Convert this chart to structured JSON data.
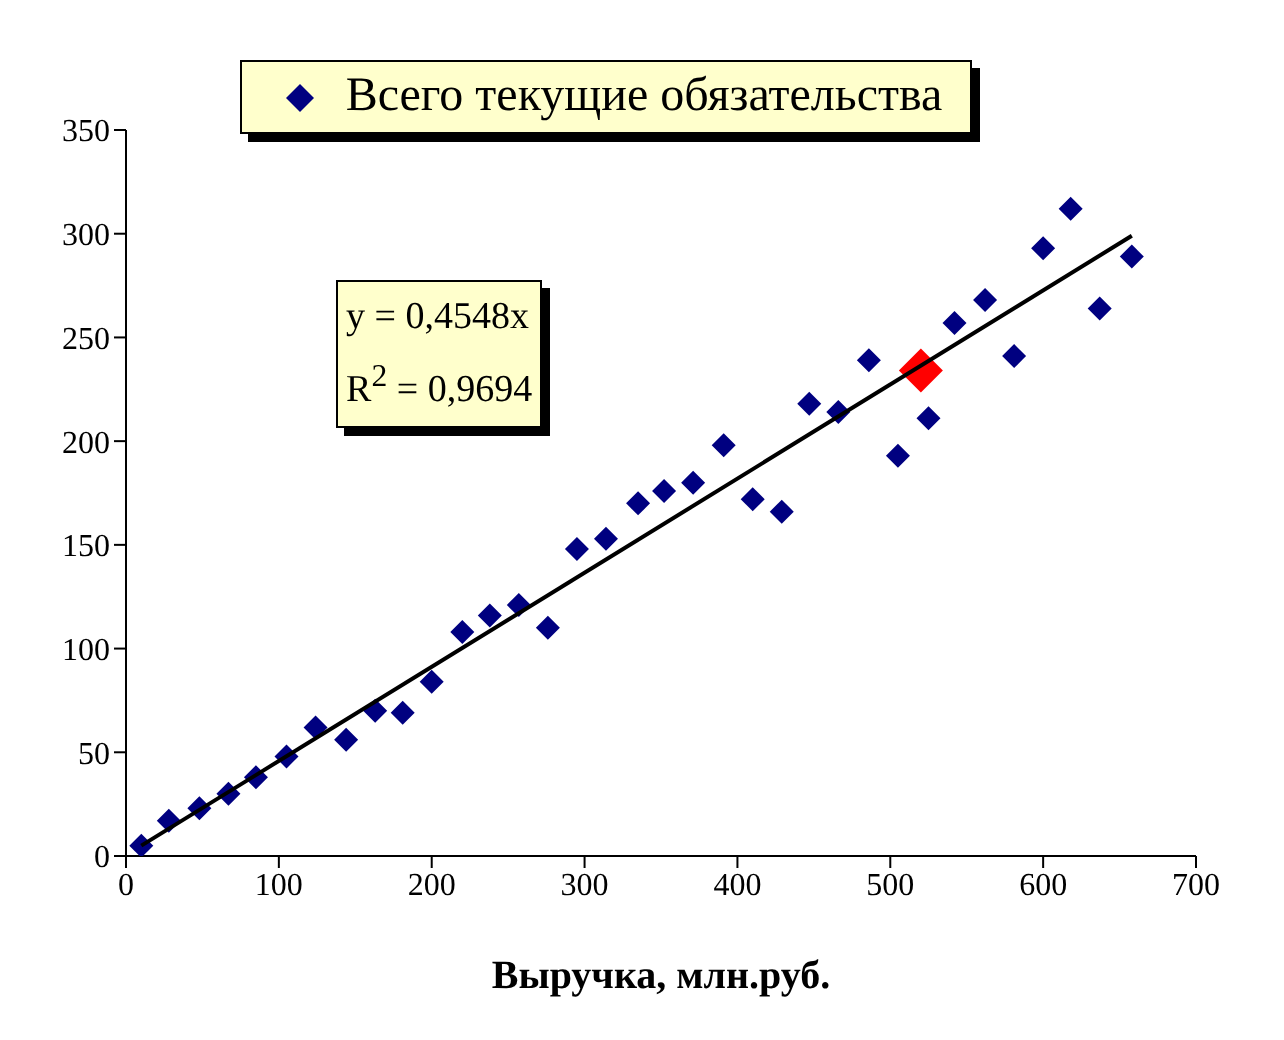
{
  "chart_data": {
    "type": "scatter",
    "xlabel": "Выручка, млн.руб.",
    "xlim": [
      0,
      700
    ],
    "xticks": [
      0,
      100,
      200,
      300,
      400,
      500,
      600,
      700
    ],
    "ylim": [
      0,
      350
    ],
    "yticks": [
      0,
      50,
      100,
      150,
      200,
      250,
      300,
      350
    ],
    "grid": false,
    "legend": "top",
    "marker": "diamond",
    "series": [
      {
        "name": "Всего текущие обязательства",
        "color": "#000080",
        "x": [
          10,
          28,
          48,
          67,
          85,
          105,
          124,
          144,
          163,
          181,
          200,
          220,
          238,
          257,
          276,
          295,
          314,
          335,
          352,
          371,
          391,
          410,
          429,
          447,
          466,
          486,
          505,
          525,
          542,
          562,
          581,
          600,
          618,
          637,
          658
        ],
        "values": [
          5,
          17,
          23,
          30,
          38,
          48,
          62,
          56,
          70,
          69,
          84,
          108,
          116,
          121,
          110,
          148,
          153,
          170,
          176,
          180,
          198,
          172,
          166,
          218,
          214,
          239,
          193,
          211,
          257,
          268,
          241,
          293,
          312,
          264,
          289
        ]
      },
      {
        "type": "scatter",
        "color": "#ff0000",
        "x": [
          520
        ],
        "values": [
          234
        ]
      },
      {
        "type": "line",
        "marker": "none",
        "color": "#000000",
        "x": [
          10,
          658
        ],
        "values": [
          5,
          299
        ]
      }
    ],
    "annotations": [
      "y = 0,4548x",
      "R$^{2}$ = 0,9694"
    ]
  }
}
